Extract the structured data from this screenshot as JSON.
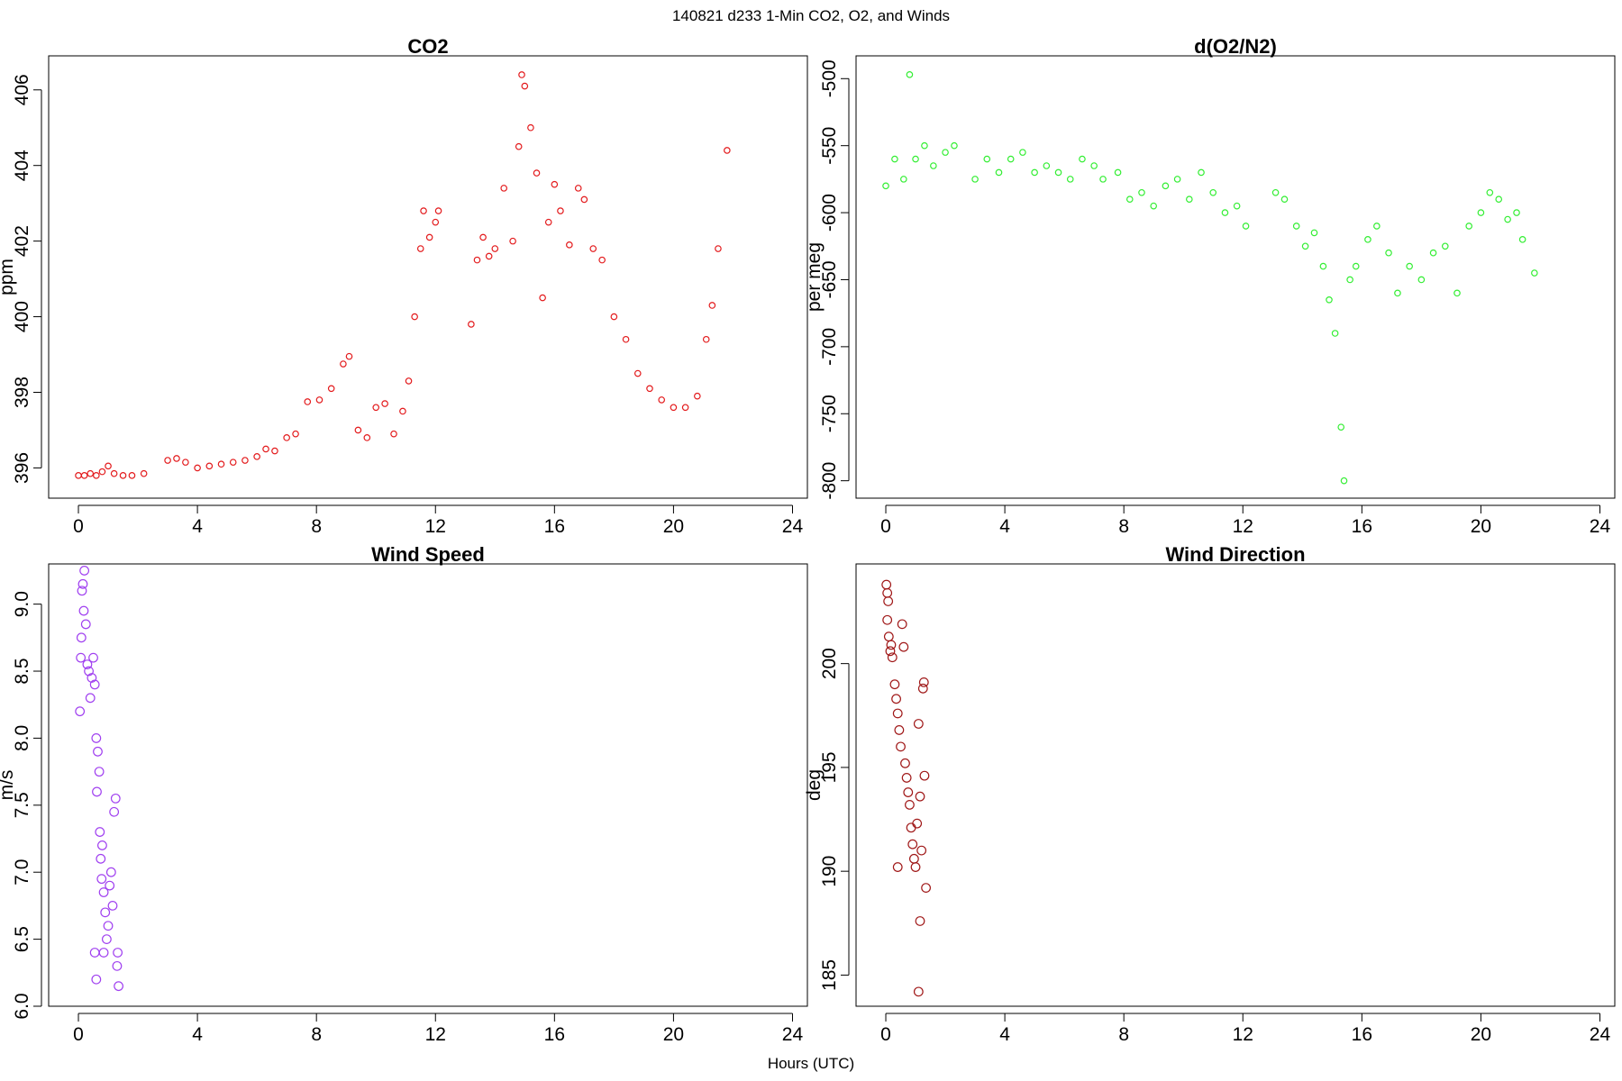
{
  "figure": {
    "title": "140821   d233   1-Min CO2, O2, and Winds",
    "xlabel": "Hours (UTC)"
  },
  "chart_data": [
    {
      "type": "scatter",
      "title": "CO2",
      "xlabel": "",
      "ylabel": "ppm",
      "xlim": [
        -1.0,
        24.5
      ],
      "ylim": [
        395.2,
        406.9
      ],
      "xticks": [
        0,
        4,
        8,
        12,
        16,
        20,
        24
      ],
      "yticks": [
        396,
        398,
        400,
        402,
        404,
        406
      ],
      "color": "#e31a1c",
      "grid": false,
      "series": [
        {
          "points": [
            [
              0.0,
              395.8
            ],
            [
              0.2,
              395.8
            ],
            [
              0.4,
              395.85
            ],
            [
              0.6,
              395.8
            ],
            [
              0.8,
              395.9
            ],
            [
              1.0,
              396.05
            ],
            [
              1.2,
              395.85
            ],
            [
              1.5,
              395.8
            ],
            [
              1.8,
              395.8
            ],
            [
              2.2,
              395.85
            ],
            [
              3.0,
              396.2
            ],
            [
              3.3,
              396.25
            ],
            [
              3.6,
              396.15
            ],
            [
              4.0,
              396.0
            ],
            [
              4.4,
              396.05
            ],
            [
              4.8,
              396.1
            ],
            [
              5.2,
              396.15
            ],
            [
              5.6,
              396.2
            ],
            [
              6.0,
              396.3
            ],
            [
              6.3,
              396.5
            ],
            [
              6.6,
              396.45
            ],
            [
              7.0,
              396.8
            ],
            [
              7.3,
              396.9
            ],
            [
              7.7,
              397.75
            ],
            [
              8.1,
              397.8
            ],
            [
              8.5,
              398.1
            ],
            [
              8.9,
              398.75
            ],
            [
              9.1,
              398.95
            ],
            [
              9.4,
              397.0
            ],
            [
              9.7,
              396.8
            ],
            [
              10.0,
              397.6
            ],
            [
              10.3,
              397.7
            ],
            [
              10.6,
              396.9
            ],
            [
              10.9,
              397.5
            ],
            [
              11.1,
              398.3
            ],
            [
              11.3,
              400.0
            ],
            [
              11.5,
              401.8
            ],
            [
              11.6,
              402.8
            ],
            [
              11.8,
              402.1
            ],
            [
              12.0,
              402.5
            ],
            [
              12.1,
              402.8
            ],
            [
              13.2,
              399.8
            ],
            [
              13.4,
              401.5
            ],
            [
              13.6,
              402.1
            ],
            [
              13.8,
              401.6
            ],
            [
              14.0,
              401.8
            ],
            [
              14.3,
              403.4
            ],
            [
              14.6,
              402.0
            ],
            [
              14.8,
              404.5
            ],
            [
              14.9,
              406.4
            ],
            [
              15.0,
              406.1
            ],
            [
              15.2,
              405.0
            ],
            [
              15.4,
              403.8
            ],
            [
              15.6,
              400.5
            ],
            [
              15.8,
              402.5
            ],
            [
              16.0,
              403.5
            ],
            [
              16.2,
              402.8
            ],
            [
              16.5,
              401.9
            ],
            [
              16.8,
              403.4
            ],
            [
              17.0,
              403.1
            ],
            [
              17.3,
              401.8
            ],
            [
              17.6,
              401.5
            ],
            [
              18.0,
              400.0
            ],
            [
              18.4,
              399.4
            ],
            [
              18.8,
              398.5
            ],
            [
              19.2,
              398.1
            ],
            [
              19.6,
              397.8
            ],
            [
              20.0,
              397.6
            ],
            [
              20.4,
              397.6
            ],
            [
              20.8,
              397.9
            ],
            [
              21.1,
              399.4
            ],
            [
              21.3,
              400.3
            ],
            [
              21.5,
              401.8
            ],
            [
              21.8,
              404.4
            ]
          ]
        }
      ]
    },
    {
      "type": "scatter",
      "title": "d(O2/N2)",
      "xlabel": "",
      "ylabel": "per meg",
      "xlim": [
        -1.0,
        24.5
      ],
      "ylim": [
        -813,
        -483
      ],
      "xticks": [
        0,
        4,
        8,
        12,
        16,
        20,
        24
      ],
      "yticks": [
        -500,
        -550,
        -600,
        -650,
        -700,
        -750,
        -800
      ],
      "color": "#33ee33",
      "grid": false,
      "series": [
        {
          "points": [
            [
              0.0,
              -580
            ],
            [
              0.3,
              -560
            ],
            [
              0.6,
              -575
            ],
            [
              0.8,
              -497
            ],
            [
              1.0,
              -560
            ],
            [
              1.3,
              -550
            ],
            [
              1.6,
              -565
            ],
            [
              2.0,
              -555
            ],
            [
              2.3,
              -550
            ],
            [
              3.0,
              -575
            ],
            [
              3.4,
              -560
            ],
            [
              3.8,
              -570
            ],
            [
              4.2,
              -560
            ],
            [
              4.6,
              -555
            ],
            [
              5.0,
              -570
            ],
            [
              5.4,
              -565
            ],
            [
              5.8,
              -570
            ],
            [
              6.2,
              -575
            ],
            [
              6.6,
              -560
            ],
            [
              7.0,
              -565
            ],
            [
              7.3,
              -575
            ],
            [
              7.8,
              -570
            ],
            [
              8.2,
              -590
            ],
            [
              8.6,
              -585
            ],
            [
              9.0,
              -595
            ],
            [
              9.4,
              -580
            ],
            [
              9.8,
              -575
            ],
            [
              10.2,
              -590
            ],
            [
              10.6,
              -570
            ],
            [
              11.0,
              -585
            ],
            [
              11.4,
              -600
            ],
            [
              11.8,
              -595
            ],
            [
              12.1,
              -610
            ],
            [
              13.1,
              -585
            ],
            [
              13.4,
              -590
            ],
            [
              13.8,
              -610
            ],
            [
              14.1,
              -625
            ],
            [
              14.4,
              -615
            ],
            [
              14.7,
              -640
            ],
            [
              14.9,
              -665
            ],
            [
              15.1,
              -690
            ],
            [
              15.3,
              -760
            ],
            [
              15.4,
              -800
            ],
            [
              15.6,
              -650
            ],
            [
              15.8,
              -640
            ],
            [
              16.2,
              -620
            ],
            [
              16.5,
              -610
            ],
            [
              16.9,
              -630
            ],
            [
              17.2,
              -660
            ],
            [
              17.6,
              -640
            ],
            [
              18.0,
              -650
            ],
            [
              18.4,
              -630
            ],
            [
              18.8,
              -625
            ],
            [
              19.2,
              -660
            ],
            [
              19.6,
              -610
            ],
            [
              20.0,
              -600
            ],
            [
              20.3,
              -585
            ],
            [
              20.6,
              -590
            ],
            [
              20.9,
              -605
            ],
            [
              21.2,
              -600
            ],
            [
              21.4,
              -620
            ],
            [
              21.8,
              -645
            ]
          ]
        }
      ]
    },
    {
      "type": "scatter",
      "title": "Wind Speed",
      "xlabel": "",
      "ylabel": "m/s",
      "xlim": [
        -1.0,
        24.5
      ],
      "ylim": [
        6.0,
        9.3
      ],
      "xticks": [
        0,
        4,
        8,
        12,
        16,
        20,
        24
      ],
      "yticks": [
        6.0,
        6.5,
        7.0,
        7.5,
        8.0,
        8.5,
        9.0
      ],
      "color": "#a040f0",
      "grid": false,
      "series": [
        {
          "points": [
            [
              0.05,
              8.2
            ],
            [
              0.08,
              8.6
            ],
            [
              0.1,
              8.75
            ],
            [
              0.12,
              9.1
            ],
            [
              0.15,
              9.15
            ],
            [
              0.18,
              8.95
            ],
            [
              0.2,
              9.25
            ],
            [
              0.25,
              8.85
            ],
            [
              0.3,
              8.55
            ],
            [
              0.35,
              8.5
            ],
            [
              0.4,
              8.3
            ],
            [
              0.45,
              8.45
            ],
            [
              0.5,
              8.6
            ],
            [
              0.55,
              8.4
            ],
            [
              0.6,
              8.0
            ],
            [
              0.62,
              7.6
            ],
            [
              0.65,
              7.9
            ],
            [
              0.7,
              7.75
            ],
            [
              0.72,
              7.3
            ],
            [
              0.75,
              7.1
            ],
            [
              0.78,
              6.95
            ],
            [
              0.8,
              7.2
            ],
            [
              0.85,
              6.85
            ],
            [
              0.9,
              6.7
            ],
            [
              0.95,
              6.5
            ],
            [
              1.0,
              6.6
            ],
            [
              1.05,
              6.9
            ],
            [
              1.1,
              7.0
            ],
            [
              1.15,
              6.75
            ],
            [
              1.2,
              7.45
            ],
            [
              1.25,
              7.55
            ],
            [
              1.3,
              6.3
            ],
            [
              1.32,
              6.4
            ],
            [
              1.35,
              6.15
            ],
            [
              0.55,
              6.4
            ],
            [
              0.6,
              6.2
            ],
            [
              0.85,
              6.4
            ]
          ]
        }
      ]
    },
    {
      "type": "scatter",
      "title": "Wind Direction",
      "xlabel": "",
      "ylabel": "deg",
      "xlim": [
        -1.0,
        24.5
      ],
      "ylim": [
        183.5,
        204.8
      ],
      "xticks": [
        0,
        4,
        8,
        12,
        16,
        20,
        24
      ],
      "yticks": [
        185,
        190,
        195,
        200
      ],
      "color": "#a01818",
      "grid": false,
      "series": [
        {
          "points": [
            [
              0.02,
              203.8
            ],
            [
              0.05,
              203.4
            ],
            [
              0.08,
              203.0
            ],
            [
              0.05,
              202.1
            ],
            [
              0.1,
              201.3
            ],
            [
              0.15,
              200.6
            ],
            [
              0.18,
              200.9
            ],
            [
              0.22,
              200.3
            ],
            [
              0.3,
              199.0
            ],
            [
              0.35,
              198.3
            ],
            [
              0.4,
              197.6
            ],
            [
              0.45,
              196.8
            ],
            [
              0.5,
              196.0
            ],
            [
              0.55,
              201.9
            ],
            [
              0.6,
              200.8
            ],
            [
              0.65,
              195.2
            ],
            [
              0.7,
              194.5
            ],
            [
              0.75,
              193.8
            ],
            [
              0.8,
              193.2
            ],
            [
              0.85,
              192.1
            ],
            [
              0.9,
              191.3
            ],
            [
              0.95,
              190.6
            ],
            [
              1.0,
              190.2
            ],
            [
              1.05,
              192.3
            ],
            [
              1.1,
              197.1
            ],
            [
              1.15,
              193.6
            ],
            [
              1.2,
              191.0
            ],
            [
              1.25,
              198.8
            ],
            [
              1.28,
              199.1
            ],
            [
              1.3,
              194.6
            ],
            [
              1.35,
              189.2
            ],
            [
              1.15,
              187.6
            ],
            [
              1.1,
              184.2
            ],
            [
              0.4,
              190.2
            ]
          ]
        }
      ]
    }
  ]
}
